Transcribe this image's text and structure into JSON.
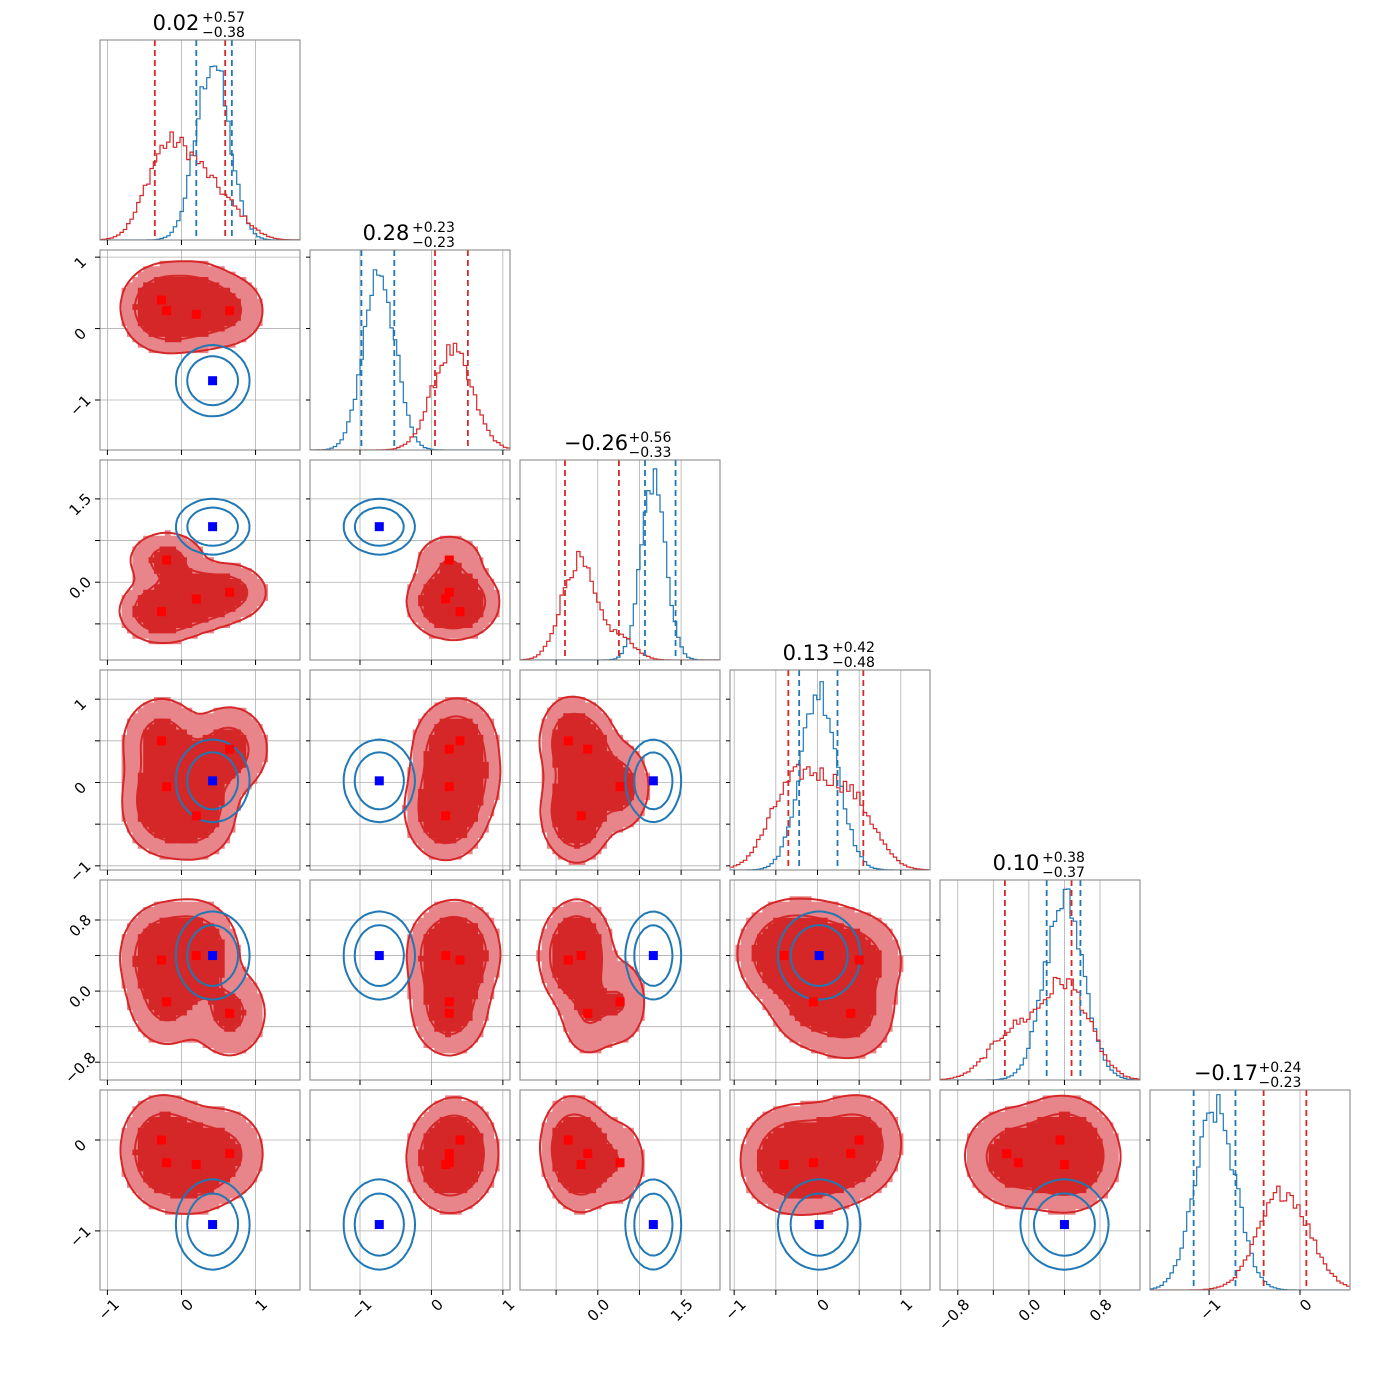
{
  "chart_data": {
    "type": "corner",
    "n_params": 6,
    "grid": true,
    "colors": {
      "red": "#d62728",
      "blue": "#1f77b4",
      "red_marker": "#ff0000",
      "blue_marker": "#0000ff"
    },
    "params": [
      {
        "title_main": "0.02",
        "title_plus": "+0.57",
        "title_minus": "−0.38",
        "range": [
          -1.1,
          1.6
        ],
        "ticks": [
          -1,
          0,
          1
        ],
        "tick_labels": [
          "−1",
          "0",
          "1"
        ],
        "red_quantiles": [
          -0.36,
          0.59
        ],
        "blue_quantiles": [
          0.2,
          0.68
        ]
      },
      {
        "title_main": "0.28",
        "title_plus": "+0.23",
        "title_minus": "−0.23",
        "range": [
          -1.7,
          1.1
        ],
        "ticks": [
          -1,
          0,
          1
        ],
        "tick_labels": [
          "−1",
          "0",
          "1"
        ],
        "red_quantiles": [
          0.05,
          0.51
        ],
        "blue_quantiles": [
          -0.98,
          -0.52
        ]
      },
      {
        "title_main": "−0.26",
        "title_plus": "+0.56",
        "title_minus": "−0.33",
        "range": [
          -1.4,
          2.2
        ],
        "ticks": [
          -0.75,
          0,
          0.75,
          1.5
        ],
        "tick_labels": [
          "",
          "0.0",
          "",
          "1.5"
        ],
        "red_quantiles": [
          -0.59,
          0.38
        ],
        "blue_quantiles": [
          0.85,
          1.4
        ]
      },
      {
        "title_main": "0.13",
        "title_plus": "+0.42",
        "title_minus": "−0.48",
        "range": [
          -1.05,
          1.35
        ],
        "ticks": [
          -1,
          -0.5,
          0,
          0.5,
          1
        ],
        "tick_labels": [
          "−1",
          "",
          "0",
          "",
          "1"
        ],
        "red_quantiles": [
          -0.35,
          0.55
        ],
        "blue_quantiles": [
          -0.22,
          0.24
        ]
      },
      {
        "title_main": "0.10",
        "title_plus": "+0.38",
        "title_minus": "−0.37",
        "range": [
          -1.0,
          1.25
        ],
        "ticks": [
          -0.8,
          -0.4,
          0,
          0.4,
          0.8
        ],
        "tick_labels": [
          "−0.8",
          "",
          "0.0",
          "",
          "0.8"
        ],
        "red_quantiles": [
          -0.27,
          0.48
        ],
        "blue_quantiles": [
          0.2,
          0.58
        ]
      },
      {
        "title_main": "−0.17",
        "title_plus": "+0.24",
        "title_minus": "−0.23",
        "range": [
          -1.65,
          0.55
        ],
        "ticks": [
          -1,
          0
        ],
        "tick_labels": [
          "−1",
          "0"
        ],
        "red_quantiles": [
          -0.4,
          0.07
        ],
        "blue_quantiles": [
          -1.17,
          -0.71
        ]
      }
    ],
    "red_modes": [
      [
        -0.27,
        0.4,
        -0.53,
        0.5,
        0.35,
        0.0
      ],
      [
        -0.2,
        0.25,
        0.4,
        -0.05,
        -0.12,
        -0.25
      ],
      [
        0.2,
        0.2,
        -0.3,
        -0.4,
        0.4,
        -0.27
      ],
      [
        0.65,
        0.25,
        -0.18,
        0.4,
        -0.25,
        -0.15
      ],
      [
        0.2,
        0.45,
        -0.27,
        0.05,
        0.48,
        -0.2
      ],
      [
        -0.25,
        0.2,
        -0.5,
        -0.35,
        0.45,
        -0.15
      ]
    ],
    "blue_center": [
      0.42,
      -0.73,
      1.0,
      0.02,
      0.4,
      -0.93
    ],
    "red_markers": [
      [
        -0.27,
        0.4,
        -0.53,
        0.5,
        0.35,
        0.0
      ],
      [
        -0.2,
        0.25,
        0.4,
        -0.05,
        -0.12,
        -0.25
      ],
      [
        0.2,
        0.2,
        -0.3,
        -0.4,
        0.4,
        -0.27
      ],
      [
        0.65,
        0.25,
        -0.18,
        0.4,
        -0.25,
        -0.15
      ]
    ],
    "blue_marker": [
      0.42,
      -0.73,
      1.0,
      0.02,
      0.4,
      -0.93
    ]
  }
}
